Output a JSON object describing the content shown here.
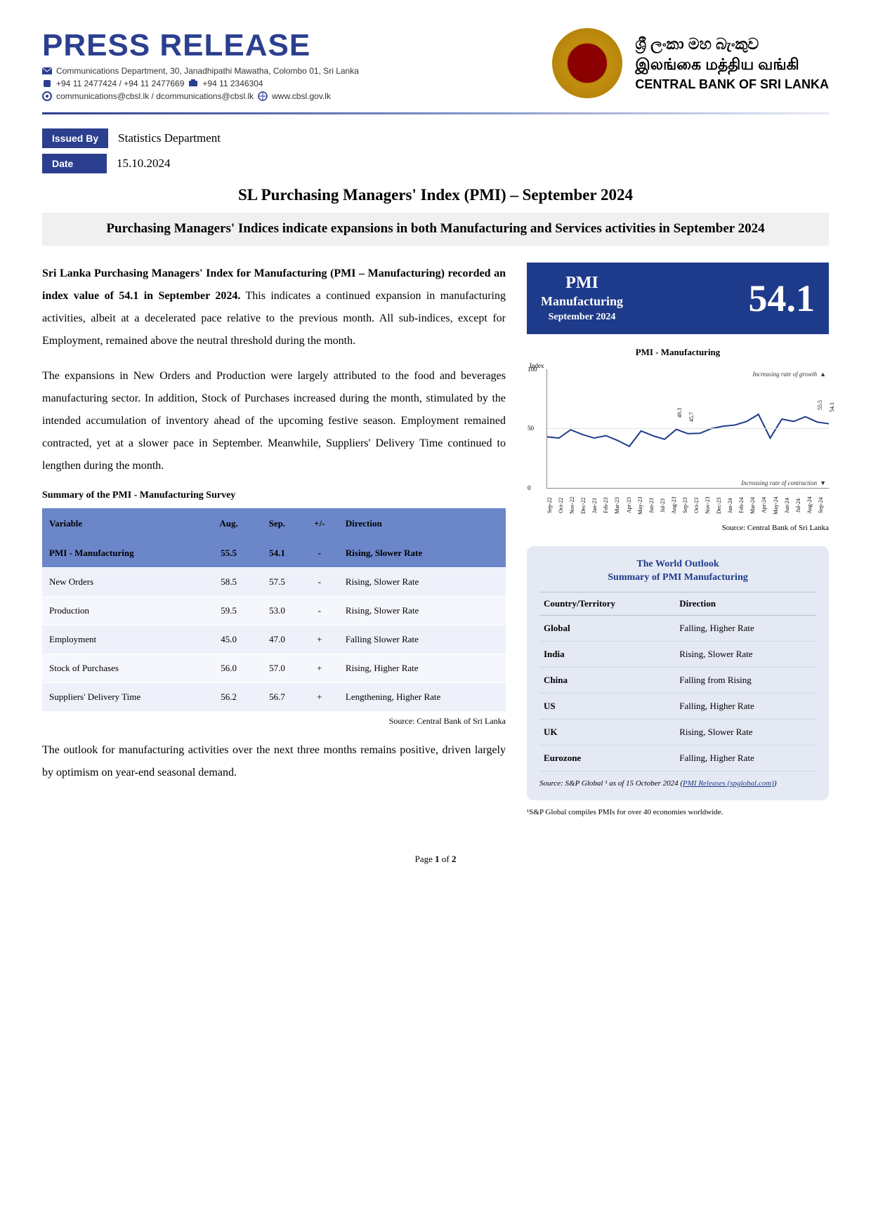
{
  "header": {
    "press_release": "PRESS RELEASE",
    "address": "Communications Department, 30, Janadhipathi Mawatha, Colombo 01, Sri Lanka",
    "phone_a": "+94 11 2477424 / +94 11 2477669",
    "phone_b": "+94 11  2346304",
    "email": "communications@cbsl.lk / dcommunications@cbsl.lk",
    "web": "www.cbsl.gov.lk",
    "bank_si": "ශ්‍රී ලංකා මහ බැංකුව",
    "bank_ta": "இலங்கை மத்திய வங்கி",
    "bank_en": "CENTRAL BANK OF SRI LANKA"
  },
  "meta": {
    "issued_by_label": "Issued By",
    "issued_by": "Statistics Department",
    "date_label": "Date",
    "date": "15.10.2024"
  },
  "title": "SL Purchasing Managers' Index (PMI) – September 2024",
  "subtitle": "Purchasing Managers' Indices indicate expansions in both Manufacturing and Services activities in September 2024",
  "paras": {
    "p1": "Sri Lanka Purchasing Managers' Index for Manufacturing (PMI – Manufacturing) recorded an index value of 54.1 in September 2024. This indicates a continued expansion in manufacturing activities, albeit at a decelerated pace relative to the previous month. All sub-indices, except for Employment, remained above the neutral threshold during the month.",
    "p2": "The expansions in New Orders and Production were largely attributed to the food and beverages manufacturing sector. In addition, Stock of Purchases increased during the month, stimulated by the intended accumulation of inventory ahead of the upcoming festive season. Employment remained contracted, yet at a slower pace in September. Meanwhile, Suppliers' Delivery Time continued to lengthen during the month.",
    "p3": "The outlook for manufacturing activities over the next three months remains positive, driven largely by optimism on year-end seasonal demand."
  },
  "pmi_box": {
    "title": "PMI",
    "sub": "Manufacturing",
    "date": "September 2024",
    "value": "54.1"
  },
  "chart": {
    "title": "PMI - Manufacturing",
    "ylabel_axis": "Index",
    "ylim": [
      0,
      100
    ],
    "yticks": [
      0,
      50,
      100
    ],
    "annot_up": "Increasing rate of growth",
    "annot_down": "Increasing rate of contraction",
    "line_color": "#1e3a8a",
    "grid_color": "#e0e0e0",
    "background_color": "#ffffff",
    "x_labels": [
      "Sep-22",
      "Oct-22",
      "Nov-22",
      "Dec-22",
      "Jan-23",
      "Feb-23",
      "Mar-23",
      "Apr-23",
      "May-23",
      "Jun-23",
      "Jul-23",
      "Aug-23",
      "Sep-23",
      "Oct-23",
      "Nov-23",
      "Dec-23",
      "Jan-24",
      "Feb-24",
      "Mar-24",
      "Apr-24",
      "May-24",
      "Jun-24",
      "Jul-24",
      "Aug-24",
      "Sep-24"
    ],
    "values": [
      43,
      42,
      49,
      45,
      42,
      44,
      40,
      35,
      48,
      44,
      41,
      49.3,
      45.7,
      46,
      50,
      52,
      53,
      56,
      62,
      42,
      58,
      56,
      60,
      55.5,
      54.1
    ],
    "point_labels": {
      "11": "49.3",
      "12": "45.7",
      "23": "55.5",
      "24": "54.1"
    },
    "source": "Source: Central Bank of Sri Lanka"
  },
  "summary_table": {
    "heading": "Summary of the PMI - Manufacturing Survey",
    "columns": [
      "Variable",
      "Aug.",
      "Sep.",
      "+/-",
      "Direction"
    ],
    "col_align": [
      "left",
      "center",
      "center",
      "center",
      "left"
    ],
    "rows": [
      {
        "cells": [
          "PMI - Manufacturing",
          "55.5",
          "54.1",
          "-",
          "Rising, Slower Rate"
        ],
        "highlight": true
      },
      {
        "cells": [
          "New Orders",
          "58.5",
          "57.5",
          "-",
          "Rising, Slower Rate"
        ],
        "highlight": false
      },
      {
        "cells": [
          "Production",
          "59.5",
          "53.0",
          "-",
          "Rising, Slower Rate"
        ],
        "highlight": false
      },
      {
        "cells": [
          "Employment",
          "45.0",
          "47.0",
          "+",
          "Falling Slower Rate"
        ],
        "highlight": false
      },
      {
        "cells": [
          "Stock of Purchases",
          "56.0",
          "57.0",
          "+",
          "Rising, Higher Rate"
        ],
        "highlight": false
      },
      {
        "cells": [
          "Suppliers' Delivery Time",
          "56.2",
          "56.7",
          "+",
          "Lengthening, Higher Rate"
        ],
        "highlight": false
      }
    ],
    "source": "Source: Central Bank of Sri Lanka"
  },
  "world": {
    "title_a": "The World Outlook",
    "title_b": "Summary of PMI Manufacturing",
    "columns": [
      "Country/Territory",
      "Direction"
    ],
    "rows": [
      [
        "Global",
        "Falling, Higher Rate"
      ],
      [
        "India",
        "Rising, Slower Rate"
      ],
      [
        "China",
        "Falling from Rising"
      ],
      [
        "US",
        "Falling, Higher Rate"
      ],
      [
        "UK",
        "Rising, Slower Rate"
      ],
      [
        "Eurozone",
        "Falling, Higher Rate"
      ]
    ],
    "source_prefix": "Source: S&P Global ¹ as of 15 October 2024 (",
    "source_link": "PMI Releases (spglobal.com)",
    "source_suffix": ")",
    "footnote": "¹S&P Global compiles PMIs for over 40 economies worldwide."
  },
  "page_num": "Page 1 of 2"
}
